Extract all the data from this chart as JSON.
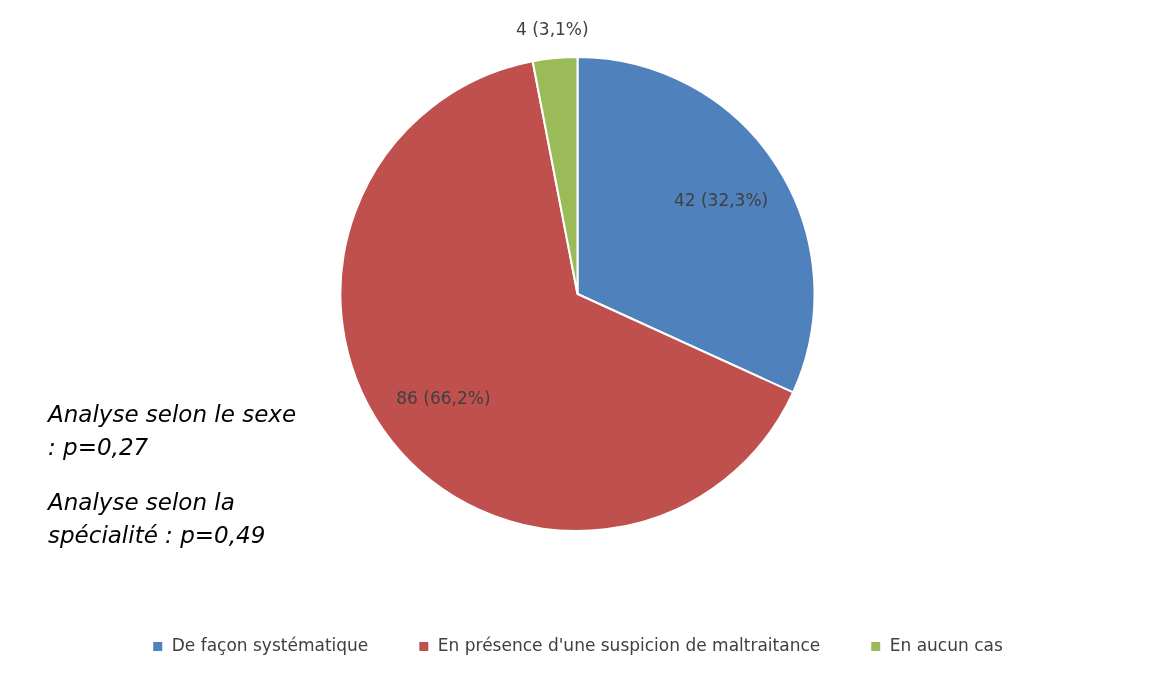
{
  "chart_data": {
    "type": "pie",
    "categories": [
      "De façon systématique",
      "En présence d'une suspicion de maltraitance",
      "En aucun cas"
    ],
    "values": [
      42,
      86,
      4
    ],
    "colors": [
      "#4f81bd",
      "#c0504d",
      "#9bbb59"
    ],
    "value_labels": [
      "42 (32,3%)",
      "86 (66,2%)",
      "4 (3,1%)"
    ],
    "legend": "bottom",
    "annotations": [
      "Analyse selon le sexe : p=0,27",
      "Analyse selon la spécialité : p=0,49"
    ]
  }
}
